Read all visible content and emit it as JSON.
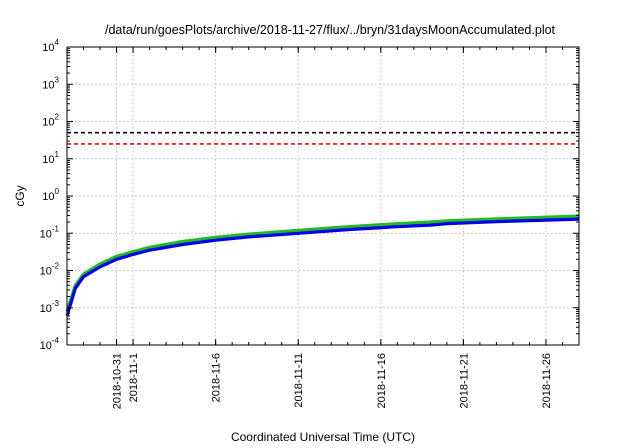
{
  "chart_data": {
    "type": "line",
    "title": "/data/run/goesPlots/archive/2018-11-27/flux/../bryn/31daysMoonAccumulated.plot",
    "xlabel": "Coordinated Universal Time (UTC)",
    "ylabel": "cGy",
    "yscale": "log",
    "ylim": [
      0.0001,
      10000
    ],
    "xlim": [
      "2018-10-28",
      "2018-11-28"
    ],
    "grid": true,
    "yticks": [
      {
        "value": 0.0001,
        "base": "10",
        "exp": "-4"
      },
      {
        "value": 0.001,
        "base": "10",
        "exp": "-3"
      },
      {
        "value": 0.01,
        "base": "10",
        "exp": "-2"
      },
      {
        "value": 0.1,
        "base": "10",
        "exp": "-1"
      },
      {
        "value": 1,
        "base": "10",
        "exp": "0"
      },
      {
        "value": 10,
        "base": "10",
        "exp": "1"
      },
      {
        "value": 100,
        "base": "10",
        "exp": "2"
      },
      {
        "value": 1000,
        "base": "10",
        "exp": "3"
      },
      {
        "value": 10000,
        "base": "10",
        "exp": "4"
      }
    ],
    "xticks": [
      "2018-10-31",
      "2018-11-1",
      "2018-11-6",
      "2018-11-11",
      "2018-11-16",
      "2018-11-21",
      "2018-11-26"
    ],
    "xtick_dates": [
      "2018-10-31",
      "2018-11-01",
      "2018-11-06",
      "2018-11-11",
      "2018-11-16",
      "2018-11-21",
      "2018-11-26"
    ],
    "reference_lines": [
      {
        "y": 50,
        "color": "#000000",
        "style": "dashed"
      },
      {
        "y": 25,
        "color": "#ff0000",
        "style": "dashed"
      }
    ],
    "series": [
      {
        "color": "#22bb22",
        "x": [
          "2018-10-28",
          "2018-10-28T12:00",
          "2018-10-29",
          "2018-10-30",
          "2018-10-31",
          "2018-11-01",
          "2018-11-02",
          "2018-11-04",
          "2018-11-06",
          "2018-11-08",
          "2018-11-11",
          "2018-11-14",
          "2018-11-17",
          "2018-11-19",
          "2018-11-20",
          "2018-11-23",
          "2018-11-26",
          "2018-11-28"
        ],
        "values": [
          0.0008,
          0.004,
          0.008,
          0.015,
          0.024,
          0.032,
          0.042,
          0.06,
          0.078,
          0.095,
          0.12,
          0.15,
          0.18,
          0.2,
          0.215,
          0.245,
          0.27,
          0.29
        ]
      },
      {
        "color": "#0000ee",
        "x": [
          "2018-10-28",
          "2018-10-28T12:00",
          "2018-10-29",
          "2018-10-30",
          "2018-10-31",
          "2018-11-01",
          "2018-11-02",
          "2018-11-04",
          "2018-11-06",
          "2018-11-08",
          "2018-11-11",
          "2018-11-14",
          "2018-11-17",
          "2018-11-19",
          "2018-11-20",
          "2018-11-23",
          "2018-11-26",
          "2018-11-28"
        ],
        "values": [
          0.0006,
          0.0033,
          0.0068,
          0.0125,
          0.02,
          0.027,
          0.035,
          0.05,
          0.065,
          0.08,
          0.1,
          0.125,
          0.15,
          0.165,
          0.18,
          0.205,
          0.225,
          0.24
        ]
      }
    ]
  }
}
